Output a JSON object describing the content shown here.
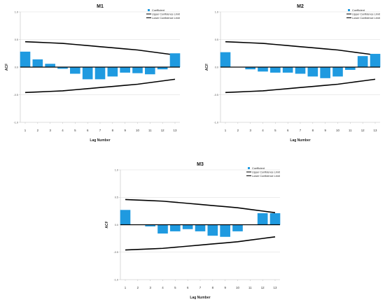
{
  "colors": {
    "bar": "#1f9ae0",
    "limit": "#000000",
    "grid": "#d9d9d9",
    "axis": "#bfbfbf",
    "zero": "#000000"
  },
  "chart_data": [
    {
      "type": "bar",
      "title": "M1",
      "xlabel": "Lag Number",
      "ylabel": "ACF",
      "ylim": [
        -1.0,
        1.0
      ],
      "yticks": [
        "1.0",
        "0.5",
        "0.0",
        "-0.5",
        "-1.0"
      ],
      "categories": [
        "1",
        "2",
        "3",
        "4",
        "5",
        "6",
        "7",
        "8",
        "9",
        "10",
        "11",
        "12",
        "13"
      ],
      "series": [
        {
          "name": "Coefficient",
          "values": [
            0.28,
            0.14,
            0.06,
            -0.03,
            -0.12,
            -0.22,
            -0.22,
            -0.17,
            -0.1,
            -0.11,
            -0.13,
            -0.04,
            0.25
          ]
        },
        {
          "name": "Upper Confidence Limit",
          "values": [
            0.46,
            0.45,
            0.44,
            0.43,
            0.41,
            0.39,
            0.37,
            0.35,
            0.33,
            0.31,
            0.28,
            0.25,
            0.22
          ]
        },
        {
          "name": "Lower Confidence Limit",
          "values": [
            -0.46,
            -0.45,
            -0.44,
            -0.43,
            -0.41,
            -0.39,
            -0.37,
            -0.35,
            -0.33,
            -0.31,
            -0.28,
            -0.25,
            -0.22
          ]
        }
      ],
      "legend": "top-right",
      "grid": true
    },
    {
      "type": "bar",
      "title": "M2",
      "xlabel": "Lag Number",
      "ylabel": "ACF",
      "ylim": [
        -1.0,
        1.0
      ],
      "yticks": [
        "1.0",
        "0.5",
        "0.0",
        "-0.5",
        "-1.0"
      ],
      "categories": [
        "1",
        "2",
        "3",
        "4",
        "5",
        "6",
        "7",
        "8",
        "9",
        "10",
        "11",
        "12",
        "13"
      ],
      "series": [
        {
          "name": "Coefficient",
          "values": [
            0.27,
            0.0,
            -0.04,
            -0.08,
            -0.1,
            -0.1,
            -0.12,
            -0.17,
            -0.2,
            -0.17,
            -0.05,
            0.2,
            0.24
          ]
        },
        {
          "name": "Upper Confidence Limit",
          "values": [
            0.46,
            0.45,
            0.44,
            0.43,
            0.41,
            0.39,
            0.37,
            0.35,
            0.33,
            0.31,
            0.28,
            0.25,
            0.22
          ]
        },
        {
          "name": "Lower Confidence Limit",
          "values": [
            -0.46,
            -0.45,
            -0.44,
            -0.43,
            -0.41,
            -0.39,
            -0.37,
            -0.35,
            -0.33,
            -0.31,
            -0.28,
            -0.25,
            -0.22
          ]
        }
      ],
      "legend": "top-right",
      "grid": true
    },
    {
      "type": "bar",
      "title": "M3",
      "xlabel": "Lag Number",
      "ylabel": "ACF",
      "ylim": [
        -1.0,
        1.0
      ],
      "yticks": [
        "1.0",
        "0.5",
        "0.0",
        "-0.5",
        "-1.0"
      ],
      "categories": [
        "1",
        "2",
        "3",
        "4",
        "5",
        "6",
        "7",
        "8",
        "9",
        "10",
        "11",
        "12",
        "13"
      ],
      "series": [
        {
          "name": "Coefficient",
          "values": [
            0.27,
            0.0,
            -0.03,
            -0.16,
            -0.12,
            -0.08,
            -0.12,
            -0.2,
            -0.22,
            -0.12,
            0.0,
            0.21,
            0.21
          ]
        },
        {
          "name": "Upper Confidence Limit",
          "values": [
            0.46,
            0.45,
            0.44,
            0.43,
            0.41,
            0.39,
            0.37,
            0.35,
            0.33,
            0.31,
            0.28,
            0.25,
            0.22
          ]
        },
        {
          "name": "Lower Confidence Limit",
          "values": [
            -0.46,
            -0.45,
            -0.44,
            -0.43,
            -0.41,
            -0.39,
            -0.37,
            -0.35,
            -0.33,
            -0.31,
            -0.28,
            -0.25,
            -0.22
          ]
        }
      ],
      "legend": "top-right",
      "grid": true
    }
  ]
}
